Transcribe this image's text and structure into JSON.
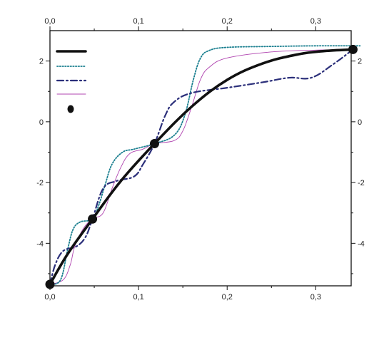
{
  "chart_data": {
    "type": "line",
    "title": "",
    "xlabel": "",
    "ylabel": "",
    "xlim": [
      0,
      0.34
    ],
    "ylim": [
      -5.4,
      3.0
    ],
    "x_ticks": [
      0.0,
      0.1,
      0.2,
      0.3
    ],
    "x_tick_labels": [
      "0,0",
      "0,1",
      "0,2",
      "0,3"
    ],
    "y_ticks": [
      -4,
      -2,
      0,
      2
    ],
    "y_tick_labels": [
      "-4",
      "-2",
      "0",
      "2"
    ],
    "grid": false,
    "mirror_axes": true,
    "legend": {
      "position": "top-left",
      "labels_shown": false
    },
    "markers": {
      "x": [
        0.0,
        0.048,
        0.118,
        0.342
      ],
      "y": [
        -5.35,
        -3.2,
        -0.72,
        2.38
      ]
    },
    "series": [
      {
        "style": "solid-thick",
        "color": "#111111",
        "x": [
          0.0,
          0.02,
          0.048,
          0.08,
          0.118,
          0.16,
          0.2,
          0.24,
          0.28,
          0.31,
          0.342
        ],
        "y": [
          -5.35,
          -4.35,
          -3.2,
          -1.95,
          -0.72,
          0.5,
          1.38,
          1.92,
          2.22,
          2.33,
          2.38
        ]
      },
      {
        "style": "dotted",
        "color": "#1a7f8f",
        "x": [
          0.0,
          0.012,
          0.02,
          0.026,
          0.034,
          0.048,
          0.055,
          0.062,
          0.07,
          0.082,
          0.095,
          0.118,
          0.14,
          0.152,
          0.162,
          0.17,
          0.18,
          0.2,
          0.25,
          0.3,
          0.35
        ],
        "y": [
          -5.35,
          -5.2,
          -4.2,
          -3.55,
          -3.3,
          -3.2,
          -2.75,
          -2.1,
          -1.4,
          -1.0,
          -0.9,
          -0.72,
          -0.45,
          0.2,
          1.4,
          2.1,
          2.35,
          2.45,
          2.48,
          2.5,
          2.5
        ]
      },
      {
        "style": "dash-dot",
        "color": "#2b2f7a",
        "x": [
          0.0,
          0.006,
          0.015,
          0.03,
          0.04,
          0.048,
          0.06,
          0.075,
          0.095,
          0.105,
          0.118,
          0.13,
          0.14,
          0.16,
          0.2,
          0.24,
          0.27,
          0.295,
          0.32,
          0.342
        ],
        "y": [
          -5.35,
          -4.7,
          -4.25,
          -4.1,
          -3.8,
          -3.2,
          -2.2,
          -1.95,
          -1.8,
          -1.4,
          -0.72,
          0.2,
          0.65,
          0.95,
          1.12,
          1.3,
          1.45,
          1.45,
          1.9,
          2.38
        ]
      },
      {
        "style": "thin",
        "color": "#b044b0",
        "x": [
          0.0,
          0.015,
          0.023,
          0.028,
          0.038,
          0.048,
          0.06,
          0.07,
          0.08,
          0.09,
          0.105,
          0.118,
          0.14,
          0.15,
          0.16,
          0.17,
          0.18,
          0.2,
          0.25,
          0.3,
          0.342
        ],
        "y": [
          -5.35,
          -5.2,
          -4.7,
          -4.1,
          -3.5,
          -3.2,
          -3.0,
          -2.2,
          -1.5,
          -1.05,
          -0.9,
          -0.72,
          -0.62,
          -0.3,
          0.5,
          1.4,
          1.8,
          2.1,
          2.3,
          2.36,
          2.38
        ]
      }
    ]
  }
}
